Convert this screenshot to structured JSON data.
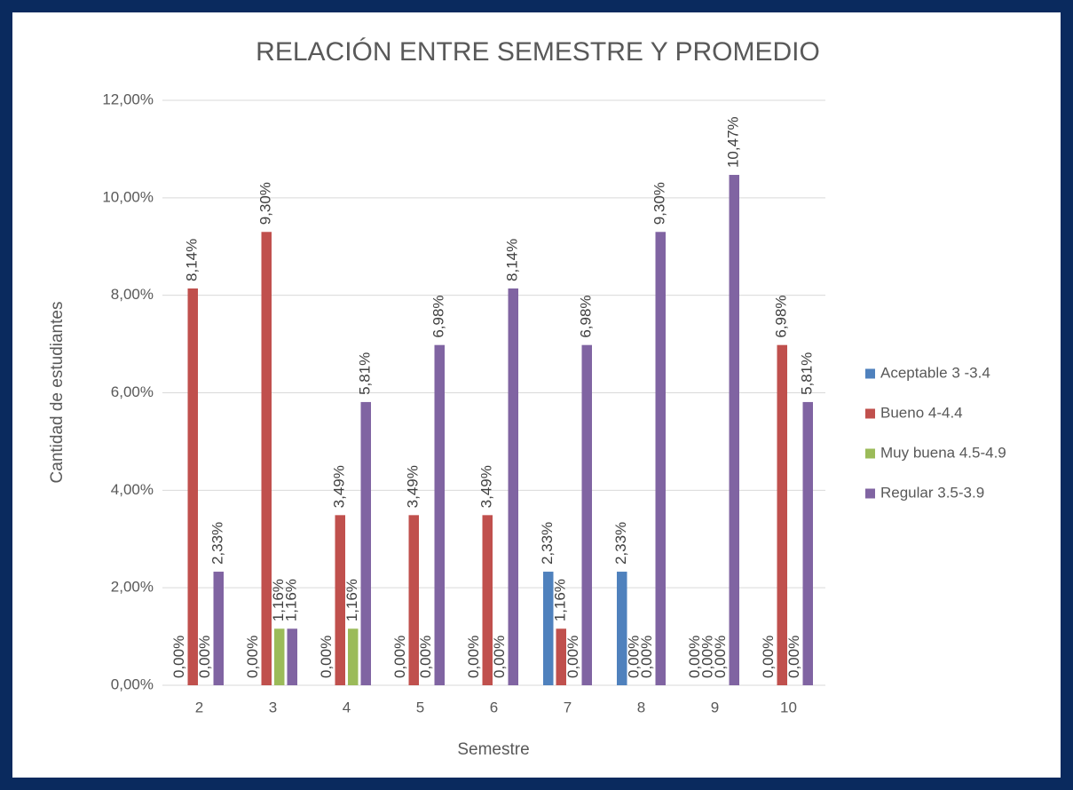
{
  "chart_data": {
    "type": "bar",
    "title": "RELACIÓN ENTRE SEMESTRE Y PROMEDIO",
    "x_label": "Semestre",
    "y_label": "Cantidad de estudiantes",
    "categories": [
      "2",
      "3",
      "4",
      "5",
      "6",
      "7",
      "8",
      "9",
      "10"
    ],
    "series": [
      {
        "name": "Aceptable 3 -3.4",
        "color": "#4f81bd",
        "values": [
          0,
          0,
          0,
          0,
          0,
          2.33,
          2.33,
          0,
          0
        ],
        "value_labels": [
          "0,00%",
          "0,00%",
          "0,00%",
          "0,00%",
          "0,00%",
          "2,33%",
          "2,33%",
          "0,00%",
          "0,00%"
        ]
      },
      {
        "name": "Bueno  4-4.4",
        "color": "#c0504d",
        "values": [
          8.14,
          9.3,
          3.49,
          3.49,
          3.49,
          1.16,
          0,
          0,
          6.98
        ],
        "value_labels": [
          "8,14%",
          "9,30%",
          "3,49%",
          "3,49%",
          "3,49%",
          "1,16%",
          "0,00%",
          "0,00%",
          "6,98%"
        ]
      },
      {
        "name": "Muy buena 4.5-4.9",
        "color": "#9bbb59",
        "values": [
          0,
          1.16,
          1.16,
          0,
          0,
          0,
          0,
          0,
          0
        ],
        "value_labels": [
          "0,00%",
          "1,16%",
          "1,16%",
          "0,00%",
          "0,00%",
          "0,00%",
          "0,00%",
          "0,00%",
          "0,00%"
        ]
      },
      {
        "name": "Regular 3.5-3.9",
        "color": "#8064a2",
        "values": [
          2.33,
          1.16,
          5.81,
          6.98,
          8.14,
          6.98,
          9.3,
          10.47,
          5.81
        ],
        "value_labels": [
          "2,33%",
          "1,16%",
          "5,81%",
          "6,98%",
          "8,14%",
          "6,98%",
          "9,30%",
          "10,47%",
          "5,81%"
        ]
      }
    ],
    "ylim": [
      0,
      12
    ],
    "yticks": [
      {
        "value": 0,
        "label": "0,00%"
      },
      {
        "value": 2,
        "label": "2,00%"
      },
      {
        "value": 4,
        "label": "4,00%"
      },
      {
        "value": 6,
        "label": "6,00%"
      },
      {
        "value": 8,
        "label": "8,00%"
      },
      {
        "value": 10,
        "label": "10,00%"
      },
      {
        "value": 12,
        "label": "12,00%"
      }
    ],
    "grid": true,
    "legend": "right"
  }
}
